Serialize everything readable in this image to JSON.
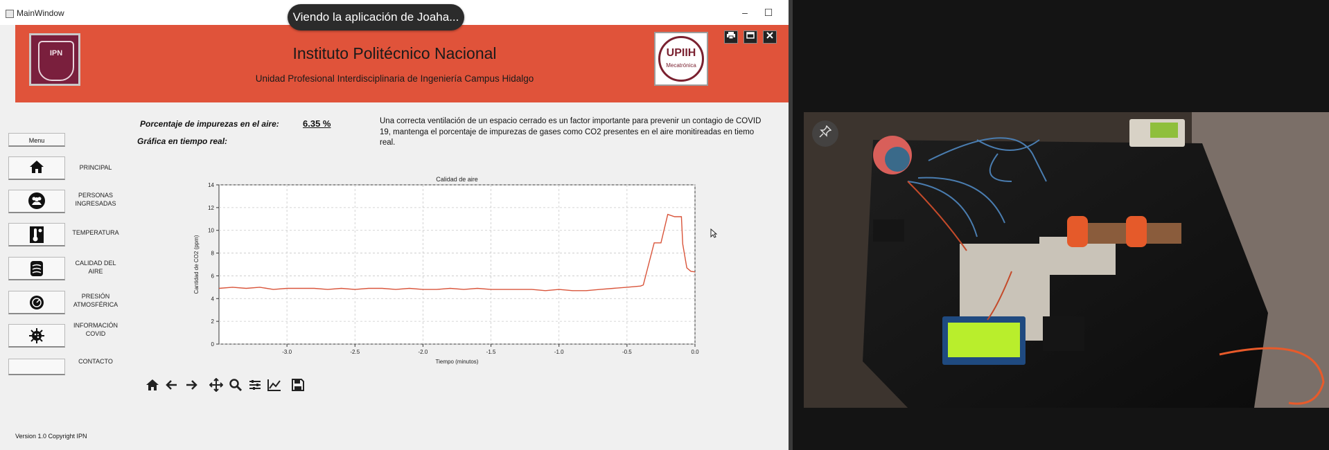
{
  "window": {
    "title": "MainWindow",
    "minimize": "–",
    "maximize": "☐"
  },
  "share_banner": "Viendo la aplicación de Joaha...",
  "header": {
    "institution": "Instituto Politécnico Nacional",
    "unit": "Unidad Profesional Interdisciplinaria de Ingeniería Campus Hidalgo",
    "logo_left_text": "IPN",
    "logo_right_title": "UPIIH",
    "logo_right_sub": "Mecatrónica",
    "controls": [
      "print-icon",
      "maximize-icon",
      "close-icon"
    ]
  },
  "menu": {
    "title": "Menu",
    "items": [
      {
        "label": "PRINCIPAL",
        "icon": "home-icon"
      },
      {
        "label": "PERSONAS INGRESADAS",
        "icon": "people-icon"
      },
      {
        "label": "TEMPERATURA",
        "icon": "thermometer-icon"
      },
      {
        "label": "CALIDAD DEL AIRE",
        "icon": "air-quality-icon"
      },
      {
        "label": "PRESIÓN ATMOSFÉRICA",
        "icon": "pressure-icon"
      },
      {
        "label": "INFORMACIÓN COVID",
        "icon": "virus-icon"
      },
      {
        "label": "CONTACTO",
        "icon": ""
      }
    ]
  },
  "info": {
    "impurity_label": "Porcentaje de impurezas en el aire:",
    "impurity_value": "6.35 %",
    "realtime_label": "Gráfica en tiempo real:",
    "notice": "Una correcta ventilación de un espacio cerrado es un factor importante para prevenir un contagio de COVID 19, mantenga el porcentaje de impurezas de gases como CO2 presentes en el aire monitireadas en tiemo real."
  },
  "chart_data": {
    "type": "line",
    "title": "Calidad de aire",
    "xlabel": "Tiempo (minutos)",
    "ylabel": "Cantidad de CO2 (ppm)",
    "xlim": [
      -3.5,
      0.0
    ],
    "ylim": [
      0,
      14
    ],
    "xticks": [
      "-3.0",
      "-2.5",
      "-2.0",
      "-1.5",
      "-1.0",
      "-0.5",
      "0.0"
    ],
    "yticks": [
      "0",
      "2",
      "4",
      "6",
      "8",
      "10",
      "12",
      "14"
    ],
    "grid": true,
    "color": "#d9543a",
    "x": [
      -3.5,
      -3.4,
      -3.3,
      -3.2,
      -3.1,
      -3.0,
      -2.9,
      -2.8,
      -2.7,
      -2.6,
      -2.5,
      -2.4,
      -2.3,
      -2.2,
      -2.1,
      -2.0,
      -1.9,
      -1.8,
      -1.7,
      -1.6,
      -1.5,
      -1.4,
      -1.3,
      -1.2,
      -1.1,
      -1.0,
      -0.9,
      -0.8,
      -0.7,
      -0.6,
      -0.5,
      -0.4,
      -0.38,
      -0.3,
      -0.28,
      -0.25,
      -0.2,
      -0.15,
      -0.1,
      -0.09,
      -0.06,
      -0.03,
      0.0
    ],
    "y": [
      4.9,
      5.0,
      4.9,
      5.0,
      4.8,
      4.9,
      4.9,
      4.9,
      4.8,
      4.9,
      4.8,
      4.9,
      4.9,
      4.8,
      4.9,
      4.8,
      4.8,
      4.9,
      4.8,
      4.9,
      4.8,
      4.8,
      4.8,
      4.8,
      4.7,
      4.8,
      4.7,
      4.7,
      4.8,
      4.9,
      5.0,
      5.1,
      5.2,
      8.9,
      8.9,
      8.9,
      11.4,
      11.2,
      11.2,
      8.8,
      6.7,
      6.4,
      6.35
    ]
  },
  "toolbar": [
    "home-icon",
    "back-icon",
    "forward-icon",
    "pan-icon",
    "zoom-icon",
    "configure-icon",
    "edit-axis-icon",
    "save-icon"
  ],
  "footer": "Version 1.0 Copyright IPN"
}
